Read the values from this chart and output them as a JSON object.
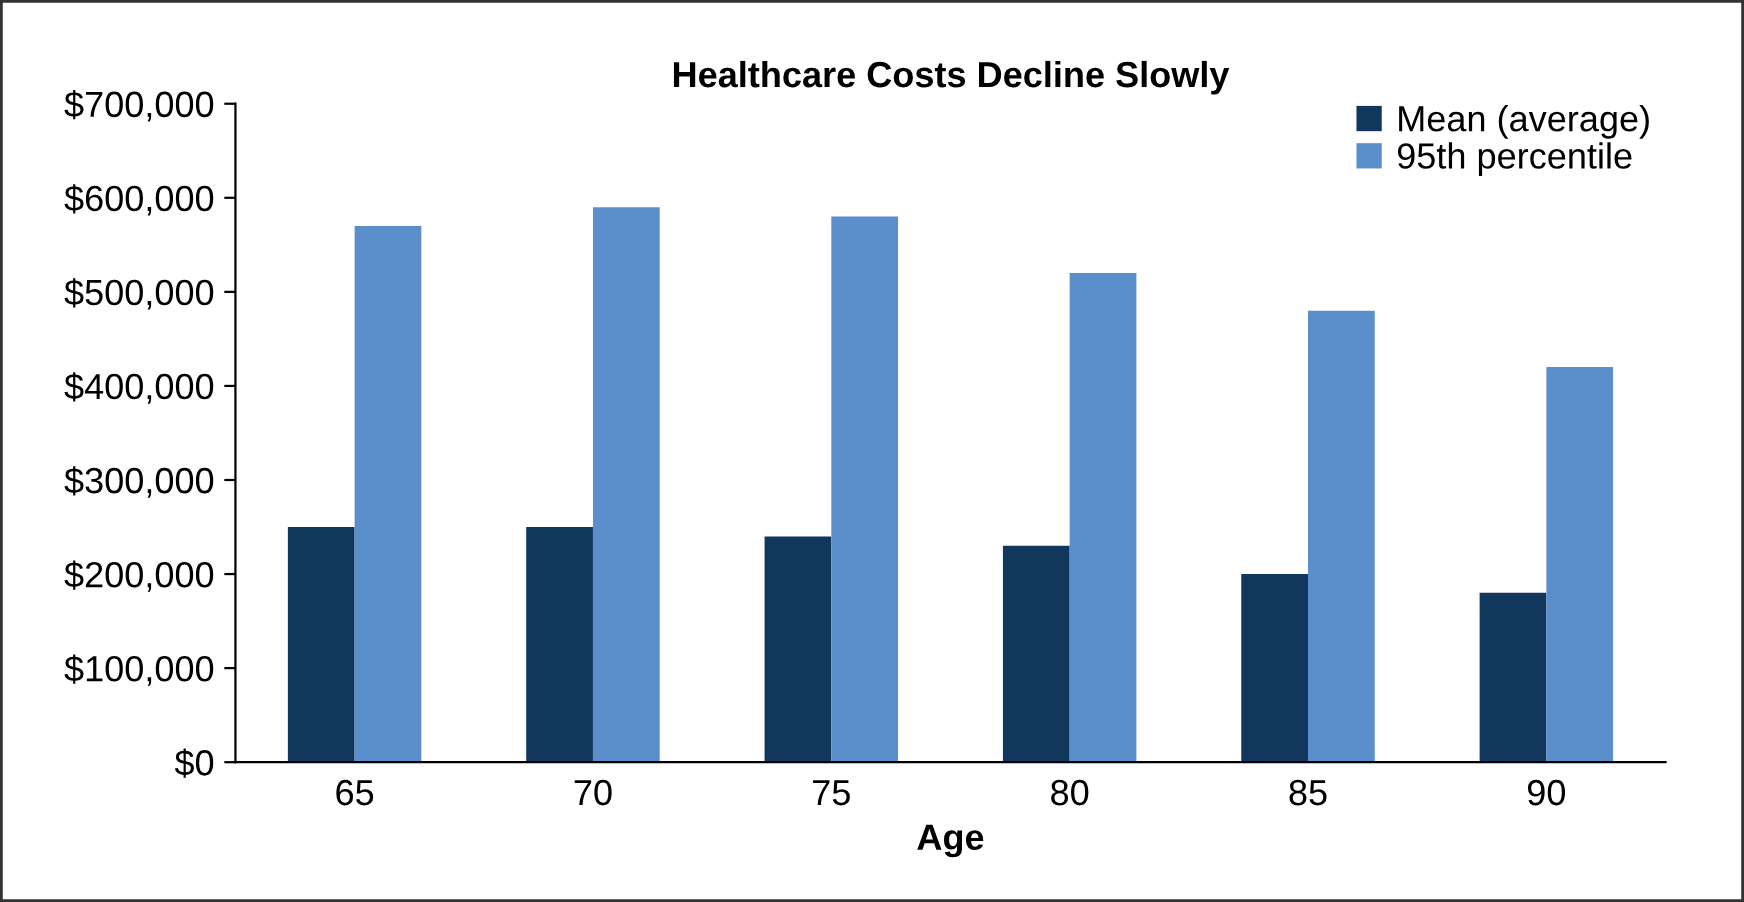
{
  "chart_data": {
    "type": "bar",
    "title": "Healthcare Costs Decline Slowly",
    "xlabel": "Age",
    "categories": [
      "65",
      "70",
      "75",
      "80",
      "85",
      "90"
    ],
    "series": [
      {
        "name": "Mean (average)",
        "color": "#12375c",
        "values": [
          250000,
          250000,
          240000,
          230000,
          200000,
          180000
        ]
      },
      {
        "name": "95th percentile",
        "color": "#5b8fcc",
        "values": [
          570000,
          590000,
          580000,
          520000,
          480000,
          420000
        ]
      }
    ],
    "ylim": [
      0,
      700000
    ],
    "yticks": [
      {
        "value": 0,
        "label": "$0"
      },
      {
        "value": 100000,
        "label": "$100,000"
      },
      {
        "value": 200000,
        "label": "$200,000"
      },
      {
        "value": 300000,
        "label": "$300,000"
      },
      {
        "value": 400000,
        "label": "$400,000"
      },
      {
        "value": 500000,
        "label": "$500,000"
      },
      {
        "value": 600000,
        "label": "$600,000"
      },
      {
        "value": 700000,
        "label": "$700,000"
      }
    ],
    "grid": false,
    "legend": "top right"
  }
}
